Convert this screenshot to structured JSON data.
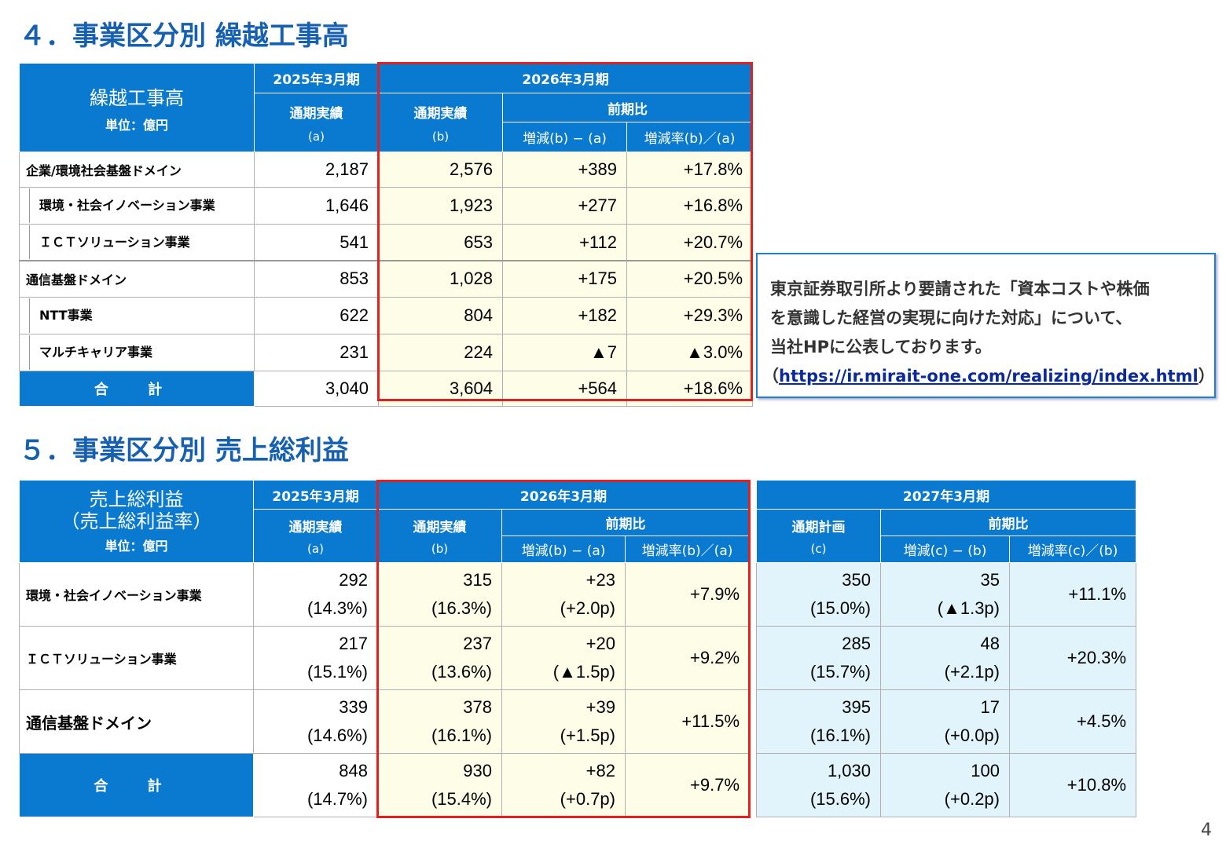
{
  "section4": {
    "title": "４．事業区分別 繰越工事高",
    "header": {
      "main_label": "繰越工事高",
      "unit": "単位：億円",
      "fy2025": "2025年3月期",
      "fy2026": "2026年3月期",
      "actual": "通期実績",
      "a": "(a)",
      "b": "(b)",
      "comparison": "前期比",
      "diff": "増減(b) − (a)",
      "rate": "増減率(b)／(a)"
    },
    "rows": [
      {
        "label": "企業/環境社会基盤ドメイン",
        "a": "2,187",
        "b": "2,576",
        "diff": "+389",
        "rate": "+17.8%"
      },
      {
        "label": "環境・社会イノベーション事業",
        "a": "1,646",
        "b": "1,923",
        "diff": "+277",
        "rate": "+16.8%"
      },
      {
        "label": "ＩＣＴソリューション事業",
        "a": "541",
        "b": "653",
        "diff": "+112",
        "rate": "+20.7%"
      },
      {
        "label": "通信基盤ドメイン",
        "a": "853",
        "b": "1,028",
        "diff": "+175",
        "rate": "+20.5%"
      },
      {
        "label": "NTT事業",
        "a": "622",
        "b": "804",
        "diff": "+182",
        "rate": "+29.3%"
      },
      {
        "label": "マルチキャリア事業",
        "a": "231",
        "b": "224",
        "diff": "▲7",
        "rate": "▲3.0%"
      }
    ],
    "total": {
      "label": "合 計",
      "a": "3,040",
      "b": "3,604",
      "diff": "+564",
      "rate": "+18.6%"
    }
  },
  "note": {
    "line1": "東京証券取引所より要請された「資本コストや株価",
    "line2": "を意識した経営の実現に向けた対応」について、",
    "line3": "当社HPに公表しております。",
    "paren_open": "（",
    "link": "https://ir.mirait-one.com/realizing/index.html",
    "paren_close": "）"
  },
  "section5": {
    "title": "５．事業区分別 売上総利益",
    "header": {
      "main_label": "売上総利益",
      "main_label2": "（売上総利益率）",
      "unit": "単位：億円",
      "fy2025": "2025年3月期",
      "fy2026": "2026年3月期",
      "fy2027": "2027年3月期",
      "actual": "通期実績",
      "plan": "通期計画",
      "a": "(a)",
      "b": "(b)",
      "c": "(c)",
      "comparison": "前期比",
      "diff_ba": "増減(b) − (a)",
      "rate_ba": "増減率(b)／(a)",
      "diff_cb": "増減(c) − (b)",
      "rate_cb": "増減率(c)／(b)"
    },
    "rows": [
      {
        "label": "環境・社会イノベーション事業",
        "a": "292",
        "a_pct": "(14.3%)",
        "b": "315",
        "b_pct": "(16.3%)",
        "diff": "+23",
        "diff_p": "(+2.0p)",
        "rate": "+7.9%",
        "c": "350",
        "c_pct": "(15.0%)",
        "diff_c": "35",
        "diff_cp": "(▲1.3p)",
        "rate_c": "+11.1%"
      },
      {
        "label": "ＩＣＴソリューション事業",
        "a": "217",
        "a_pct": "(15.1%)",
        "b": "237",
        "b_pct": "(13.6%)",
        "diff": "+20",
        "diff_p": "(▲1.5p)",
        "rate": "+9.2%",
        "c": "285",
        "c_pct": "(15.7%)",
        "diff_c": "48",
        "diff_cp": "(+2.1p)",
        "rate_c": "+20.3%"
      },
      {
        "label": "通信基盤ドメイン",
        "a": "339",
        "a_pct": "(14.6%)",
        "b": "378",
        "b_pct": "(16.1%)",
        "diff": "+39",
        "diff_p": "(+1.5p)",
        "rate": "+11.5%",
        "c": "395",
        "c_pct": "(16.1%)",
        "diff_c": "17",
        "diff_cp": "(+0.0p)",
        "rate_c": "+4.5%"
      }
    ],
    "total": {
      "label": "合 計",
      "a": "848",
      "a_pct": "(14.7%)",
      "b": "930",
      "b_pct": "(15.4%)",
      "diff": "+82",
      "diff_p": "(+0.7p)",
      "rate": "+9.7%",
      "c": "1,030",
      "c_pct": "(15.6%)",
      "diff_c": "100",
      "diff_cp": "(+0.2p)",
      "rate_c": "+10.8%"
    }
  },
  "page_number": "4",
  "colors": {
    "brand_blue": "#0a7ad1",
    "title_blue": "#1560b0",
    "highlight_red": "#e51e1e",
    "pale_yellow": "#fdfde8",
    "pale_blue": "#e1f4fc"
  }
}
